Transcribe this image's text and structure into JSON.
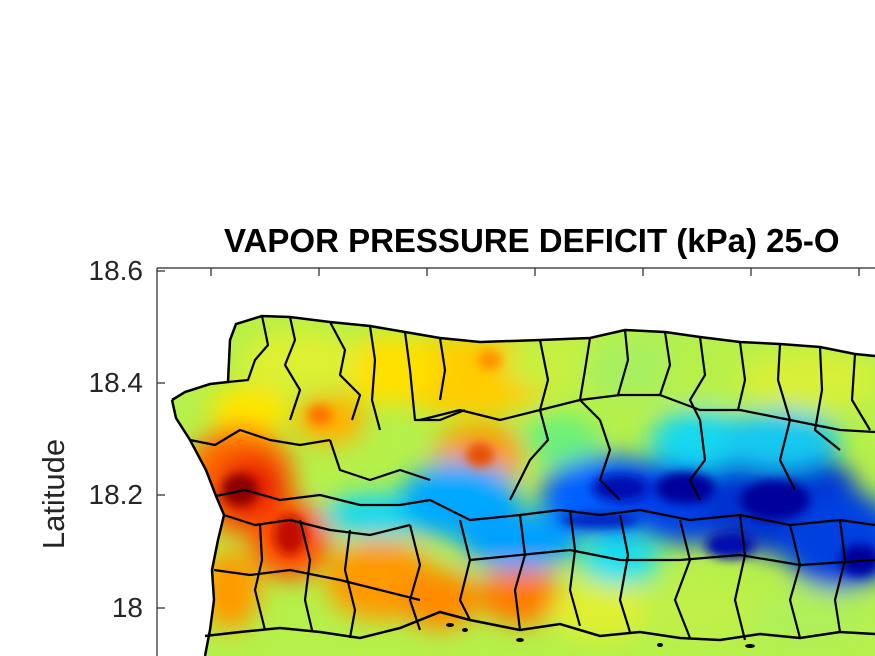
{
  "chart_data": {
    "type": "heatmap",
    "title": "VAPOR PRESSURE DEFICIT (kPa) 25-O",
    "ylabel": "Latitude",
    "xlabel": "",
    "y_ticks": [
      "18.6",
      "18.4",
      "18.2",
      "18"
    ],
    "ylim": [
      17.95,
      18.6
    ],
    "colormap": "jet",
    "border_color": "#000000",
    "region": "Puerto Rico (western portion) with municipality boundaries",
    "pattern": "Higher values (red/orange) along the west and north coasts; lowest values (dark blue) along the central mountain range"
  },
  "colors": {
    "dark_red": "#8a0000",
    "red": "#e81a00",
    "orange": "#ff8a00",
    "yellow": "#ffe600",
    "yellow_green": "#c8f23a",
    "green": "#6af07a",
    "cyan": "#14e6f0",
    "light_blue": "#00a8ff",
    "blue": "#0046ff",
    "dark_blue": "#00009a"
  }
}
